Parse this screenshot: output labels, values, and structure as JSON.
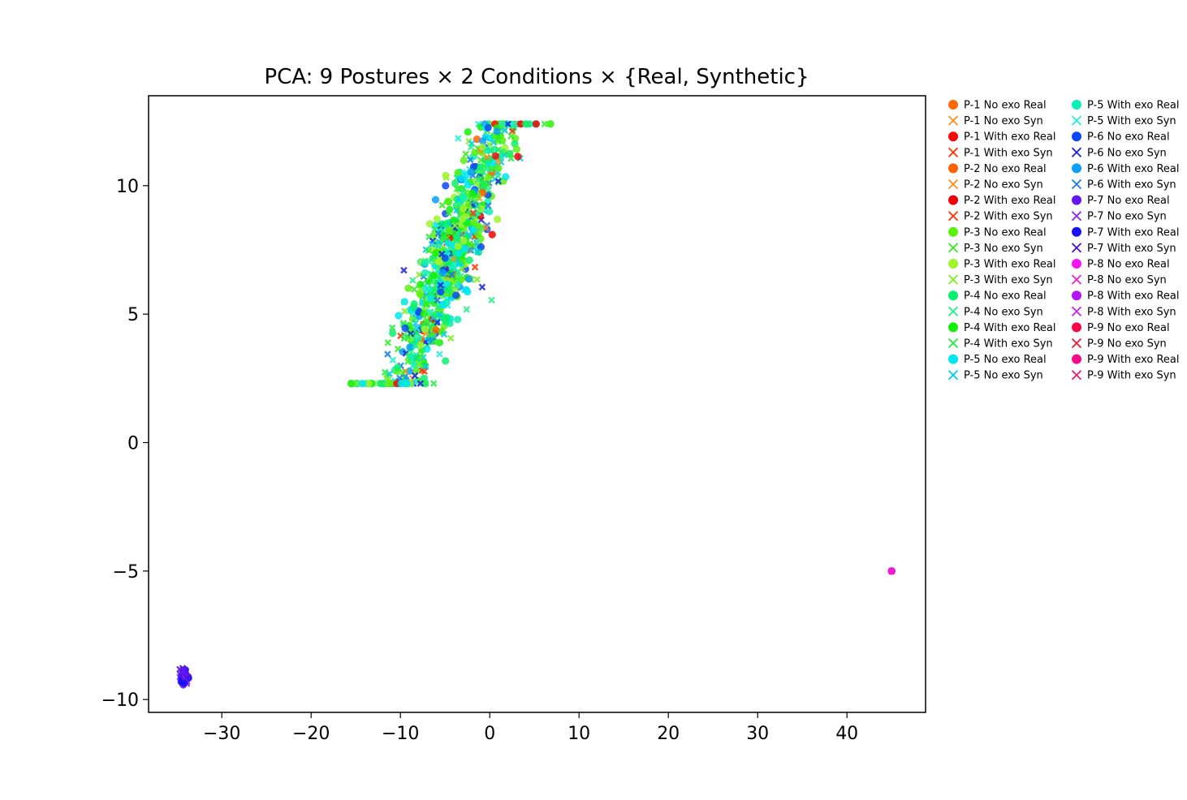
{
  "chart_data": {
    "type": "scatter",
    "title": "PCA: 9 Postures × 2 Conditions × {Real, Synthetic}",
    "xlabel": "",
    "ylabel": "",
    "xlim": [
      -38.2,
      48.8
    ],
    "ylim": [
      -10.5,
      13.5
    ],
    "xticks": [
      -30,
      -20,
      -10,
      0,
      10,
      20,
      30,
      40
    ],
    "xtick_labels": [
      "−30",
      "−20",
      "−10",
      "0",
      "10",
      "20",
      "30",
      "40"
    ],
    "yticks": [
      -10,
      -5,
      0,
      5,
      10
    ],
    "ytick_labels": [
      "−10",
      "−5",
      "0",
      "5",
      "10"
    ],
    "grid": false,
    "legend_position": "outside-right",
    "legend_columns": 2,
    "series": [
      {
        "name": "P-1 No exo Real",
        "marker": "circle",
        "color": "#ff6a00"
      },
      {
        "name": "P-1 No exo Syn",
        "marker": "x",
        "color": "#ff8c1a"
      },
      {
        "name": "P-1 With exo Real",
        "marker": "circle",
        "color": "#f50a0a"
      },
      {
        "name": "P-1 With exo Syn",
        "marker": "x",
        "color": "#ff3300"
      },
      {
        "name": "P-2 No exo Real",
        "marker": "circle",
        "color": "#ff5f00"
      },
      {
        "name": "P-2 No exo Syn",
        "marker": "x",
        "color": "#ff8c1a"
      },
      {
        "name": "P-2 With exo Real",
        "marker": "circle",
        "color": "#f00000"
      },
      {
        "name": "P-2 With exo Syn",
        "marker": "x",
        "color": "#ff3300"
      },
      {
        "name": "P-3 No exo Real",
        "marker": "circle",
        "color": "#5cf00f"
      },
      {
        "name": "P-3 No exo Syn",
        "marker": "x",
        "color": "#33ee22"
      },
      {
        "name": "P-3 With exo Real",
        "marker": "circle",
        "color": "#a0f52a"
      },
      {
        "name": "P-3 With exo Syn",
        "marker": "x",
        "color": "#7fee22"
      },
      {
        "name": "P-4 No exo Real",
        "marker": "circle",
        "color": "#0af06e"
      },
      {
        "name": "P-4 No exo Syn",
        "marker": "x",
        "color": "#22ee88"
      },
      {
        "name": "P-4 With exo Real",
        "marker": "circle",
        "color": "#14f00a"
      },
      {
        "name": "P-4 With exo Syn",
        "marker": "x",
        "color": "#22ee44"
      },
      {
        "name": "P-5 No exo Real",
        "marker": "circle",
        "color": "#00e6f0"
      },
      {
        "name": "P-5 No exo Syn",
        "marker": "x",
        "color": "#00ccee"
      },
      {
        "name": "P-5 With exo Real",
        "marker": "circle",
        "color": "#0af0b4"
      },
      {
        "name": "P-5 With exo Syn",
        "marker": "x",
        "color": "#22eedd"
      },
      {
        "name": "P-6 No exo Real",
        "marker": "circle",
        "color": "#0a46f5"
      },
      {
        "name": "P-6 No exo Syn",
        "marker": "x",
        "color": "#1a22dd"
      },
      {
        "name": "P-6 With exo Real",
        "marker": "circle",
        "color": "#0aa0f5"
      },
      {
        "name": "P-6 With exo Syn",
        "marker": "x",
        "color": "#1a77ee"
      },
      {
        "name": "P-7 No exo Real",
        "marker": "circle",
        "color": "#6414f5"
      },
      {
        "name": "P-7 No exo Syn",
        "marker": "x",
        "color": "#8822ee"
      },
      {
        "name": "P-7 With exo Real",
        "marker": "circle",
        "color": "#1414f5"
      },
      {
        "name": "P-7 With exo Syn",
        "marker": "x",
        "color": "#4411dd"
      },
      {
        "name": "P-8 No exo Real",
        "marker": "circle",
        "color": "#f514f0"
      },
      {
        "name": "P-8 No exo Syn",
        "marker": "x",
        "color": "#ee22cc"
      },
      {
        "name": "P-8 With exo Real",
        "marker": "circle",
        "color": "#b414f5"
      },
      {
        "name": "P-8 With exo Syn",
        "marker": "x",
        "color": "#cc22ee"
      },
      {
        "name": "P-9 No exo Real",
        "marker": "circle",
        "color": "#f50a46"
      },
      {
        "name": "P-9 No exo Syn",
        "marker": "x",
        "color": "#ee1a33"
      },
      {
        "name": "P-9 With exo Real",
        "marker": "circle",
        "color": "#f50a8c"
      },
      {
        "name": "P-9 With exo Syn",
        "marker": "x",
        "color": "#ee1a77"
      }
    ],
    "clusters": [
      {
        "label": "main",
        "x_range": [
          -15.5,
          7.0
        ],
        "y_range": [
          2.3,
          12.5
        ],
        "count": 900
      },
      {
        "label": "lower-left",
        "center": [
          -34.2,
          -9.1
        ],
        "spread": [
          0.35,
          0.25
        ],
        "count": 60
      },
      {
        "label": "right",
        "center": [
          45.0,
          -5.0
        ],
        "spread": [
          0.02,
          0.02
        ],
        "count": 10
      }
    ]
  }
}
